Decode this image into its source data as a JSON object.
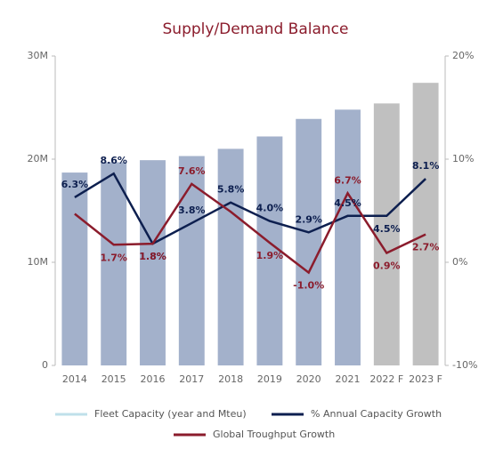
{
  "chart_data": {
    "type": "bar-line",
    "title": "Supply/Demand Balance",
    "categories": [
      "2014",
      "2015",
      "2016",
      "2017",
      "2018",
      "2019",
      "2020",
      "2021",
      "2022 F",
      "2023 F"
    ],
    "series": [
      {
        "name": "Fleet Capacity (year and Mteu)",
        "type": "bar",
        "color": "#bfe0ea",
        "bar_colors": [
          "#a3b1cb",
          "#a3b1cb",
          "#a3b1cb",
          "#a3b1cb",
          "#a3b1cb",
          "#a3b1cb",
          "#a3b1cb",
          "#a3b1cb",
          "#c0c0c0",
          "#c0c0c0"
        ],
        "values": [
          18700000,
          19700000,
          19900000,
          20300000,
          21000000,
          22200000,
          23900000,
          24800000,
          25400000,
          27400000
        ]
      },
      {
        "name": "% Annual Capacity Growth",
        "type": "line",
        "axis": "y2",
        "color": "#0d1f4f",
        "values": [
          6.3,
          8.6,
          1.8,
          3.8,
          5.8,
          4.0,
          2.9,
          4.5,
          4.5,
          8.1
        ],
        "value_labels": [
          "6.3%",
          "8.6%",
          "1.8%",
          "3.8%",
          "5.8%",
          "4.0%",
          "2.9%",
          "4.5%",
          "4.5%",
          "8.1%"
        ]
      },
      {
        "name": "Global Troughput Growth",
        "type": "line",
        "axis": "y2",
        "color": "#8b1c2c",
        "values": [
          4.7,
          1.7,
          1.8,
          7.6,
          4.9,
          1.9,
          -1.0,
          6.7,
          0.9,
          2.7
        ],
        "value_labels": [
          null,
          "1.7%",
          "1.8%",
          "7.6%",
          null,
          "1.9%",
          "-1.0%",
          "6.7%",
          "0.9%",
          "2.7%"
        ]
      }
    ],
    "ylim": [
      0,
      30000000
    ],
    "yticks": [
      {
        "value": 0,
        "label": "0"
      },
      {
        "value": 10000000,
        "label": "10M"
      },
      {
        "value": 20000000,
        "label": "20M"
      },
      {
        "value": 30000000,
        "label": "30M"
      }
    ],
    "y2lim": [
      -10,
      20
    ],
    "y2ticks": [
      {
        "value": -10,
        "label": "-10%"
      },
      {
        "value": 0,
        "label": "0%"
      },
      {
        "value": 10,
        "label": "10%"
      },
      {
        "value": 20,
        "label": "20%"
      }
    ]
  }
}
